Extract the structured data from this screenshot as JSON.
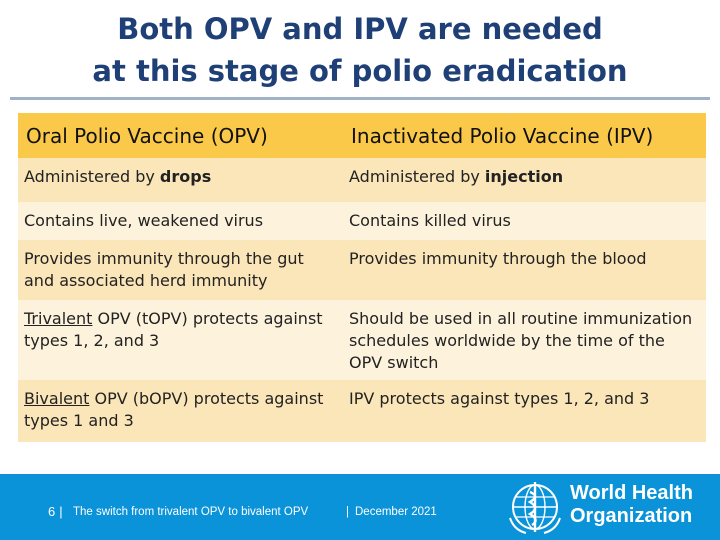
{
  "slide": {
    "title_line1": "Both OPV and IPV are needed",
    "title_line2": "at this stage of polio eradication"
  },
  "table": {
    "headers": [
      "Oral Polio Vaccine (OPV)",
      "Inactivated Polio Vaccine (IPV)"
    ],
    "rows": [
      {
        "left": {
          "before": "Administered by ",
          "bold": "drops"
        },
        "right": {
          "before": "Administered by ",
          "bold": "injection"
        }
      },
      {
        "left": "Contains live, weakened virus",
        "right": "Contains killed virus"
      },
      {
        "left_line1": "Provides immunity through the gut",
        "left_line2": "and associated herd immunity",
        "right": "Provides immunity through the blood"
      },
      {
        "left_underlined": "Trivalent",
        "left_rest1": " OPV (t",
        "left_bold": "OPV) protects against",
        "left_line2": "types 1, 2, and 3",
        "right_line1": "Should be used in all routine immunization",
        "right_line2": "schedules worldwide by the time of the",
        "right_line3": "OPV switch"
      },
      {
        "left_underlined": "Bivalent",
        "left_rest": " OPV (bOPV) protects against",
        "left_line2": "types 1 and 3",
        "right": "IPV protects against types 1, 2, and 3"
      }
    ]
  },
  "footer": {
    "page_number": "6",
    "separator": "|",
    "text": "The switch from trivalent OPV to bivalent OPV",
    "date": "December 2021",
    "org_line1": "World Health",
    "org_line2": "Organization",
    "logo": "who-emblem-icon"
  }
}
